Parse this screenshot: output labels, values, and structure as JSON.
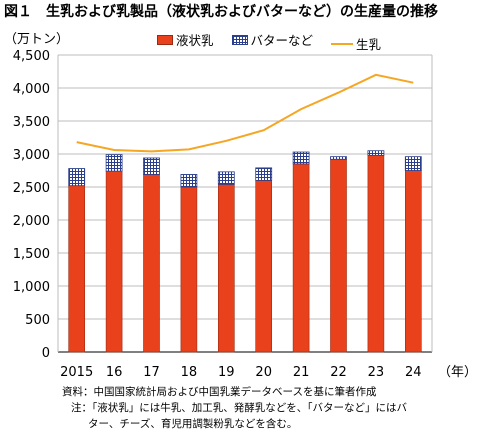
{
  "figure": {
    "title": "図１　生乳および乳製品（液状乳およびバターなど）の生産量の推移",
    "unit": "（万トン）",
    "x_unit": "（年）",
    "source": "資料：中国国家統計局および中国乳業データベースを基に筆者作成",
    "note_line1": "注：「液状乳」には牛乳、加工乳、発酵乳などを、「バターなど」にはバ",
    "note_line2": "ター、チーズ、育児用調製粉乳などを含む。"
  },
  "colors": {
    "liquid_milk": "#e8411c",
    "butter_etc": "#2b3f8c",
    "raw_milk": "#f5a623"
  },
  "chart_data": {
    "type": "bar",
    "stacked": true,
    "categories": [
      "2015",
      "16",
      "17",
      "18",
      "19",
      "20",
      "21",
      "22",
      "23",
      "24"
    ],
    "series": [
      {
        "name": "液状乳",
        "kind": "bar",
        "values": [
          2520,
          2740,
          2690,
          2500,
          2540,
          2600,
          2850,
          2920,
          2980,
          2750
        ]
      },
      {
        "name": "バターなど",
        "kind": "bar",
        "values": [
          260,
          250,
          250,
          190,
          190,
          190,
          180,
          40,
          70,
          210
        ]
      },
      {
        "name": "生乳",
        "kind": "line",
        "values": [
          3180,
          3060,
          3040,
          3070,
          3200,
          3360,
          3680,
          3930,
          4200,
          4080
        ]
      }
    ],
    "ylim": [
      0,
      4500
    ],
    "yticks": [
      "0",
      "500",
      "1,000",
      "1,500",
      "2,000",
      "2,500",
      "3,000",
      "3,500",
      "4,000",
      "4,500"
    ],
    "grid": true,
    "legend_position": "top"
  }
}
